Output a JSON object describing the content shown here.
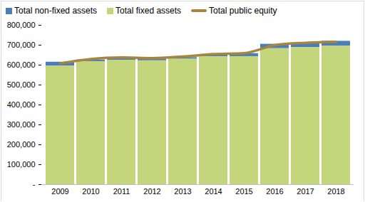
{
  "chart_data": {
    "type": "bar",
    "stacked": true,
    "legend": "top",
    "grid": false,
    "categories": [
      "2009",
      "2010",
      "2011",
      "2012",
      "2013",
      "2014",
      "2015",
      "2016",
      "2017",
      "2018"
    ],
    "series": [
      {
        "name": "Total non-fixed assets",
        "type": "bar",
        "color": "#4a7ebb",
        "values": [
          20000,
          8000,
          8000,
          8000,
          8000,
          8000,
          15000,
          22000,
          20000,
          25000
        ]
      },
      {
        "name": "Total fixed assets",
        "type": "bar",
        "color": "#c4d67b",
        "values": [
          595000,
          618000,
          625000,
          622000,
          630000,
          642000,
          643000,
          683000,
          688000,
          695000
        ]
      },
      {
        "name": "Total public equity",
        "type": "line",
        "color": "#a8853f",
        "values": [
          608000,
          630000,
          638000,
          635000,
          643000,
          655000,
          660000,
          700000,
          712000,
          717000
        ]
      }
    ],
    "ylim": [
      0,
      800000
    ],
    "yticks": [
      {
        "value": 0,
        "label": "-"
      },
      {
        "value": 100000,
        "label": "100,000"
      },
      {
        "value": 200000,
        "label": "200,000"
      },
      {
        "value": 300000,
        "label": "300,000"
      },
      {
        "value": 400000,
        "label": "400,000"
      },
      {
        "value": 500000,
        "label": "500,000"
      },
      {
        "value": 600000,
        "label": "600,000"
      },
      {
        "value": 700000,
        "label": "700,000"
      },
      {
        "value": 800000,
        "label": "800,000"
      }
    ]
  }
}
